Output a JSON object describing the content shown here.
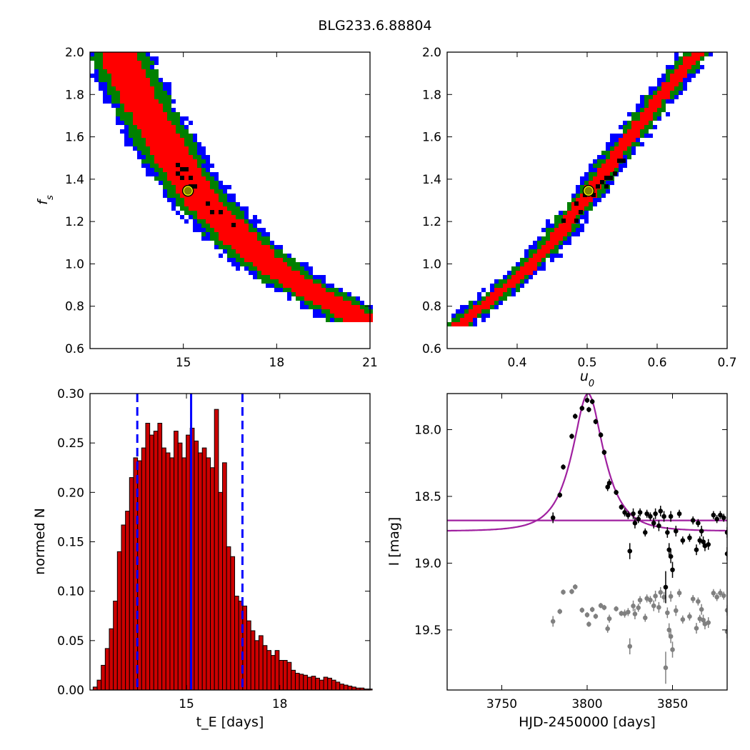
{
  "figure_title": "BLG233.6.88804",
  "chart_data": [
    {
      "type": "heatmap",
      "panel": "top-left",
      "xlabel": "",
      "ylabel": "f_s",
      "xlim": [
        12,
        21
      ],
      "ylim": [
        0.6,
        2.0
      ],
      "xticks": [
        "15",
        "18",
        "21"
      ],
      "yticks": [
        "0.6",
        "0.8",
        "1.0",
        "1.2",
        "1.4",
        "1.6",
        "1.8",
        "2.0"
      ],
      "colors": {
        "inner": "#ff0000",
        "mid": "#008000",
        "outer": "#0000ff",
        "best": "#000000"
      },
      "band_center": [
        [
          12.9,
          2.0
        ],
        [
          13.5,
          1.8
        ],
        [
          14.2,
          1.62
        ],
        [
          15.0,
          1.42
        ],
        [
          15.6,
          1.3
        ],
        [
          16.4,
          1.18
        ],
        [
          17.3,
          1.05
        ],
        [
          18.2,
          0.95
        ],
        [
          19.2,
          0.86
        ],
        [
          20.2,
          0.78
        ],
        [
          20.7,
          0.73
        ]
      ],
      "best_fit": {
        "x": 15.15,
        "y": 1.345
      }
    },
    {
      "type": "heatmap",
      "panel": "top-right",
      "xlabel": "u_0",
      "ylabel": "",
      "xlim": [
        0.3,
        0.7
      ],
      "ylim": [
        0.6,
        2.0
      ],
      "xticks": [
        "0.4",
        "0.5",
        "0.6",
        "0.7"
      ],
      "yticks": [
        "0.6",
        "0.8",
        "1.0",
        "1.2",
        "1.4",
        "1.6",
        "1.8",
        "2.0"
      ],
      "colors": {
        "inner": "#ff0000",
        "mid": "#008000",
        "outer": "#0000ff",
        "best": "#000000"
      },
      "band_center": [
        [
          0.315,
          0.71
        ],
        [
          0.35,
          0.8
        ],
        [
          0.4,
          0.93
        ],
        [
          0.45,
          1.1
        ],
        [
          0.5,
          1.32
        ],
        [
          0.55,
          1.55
        ],
        [
          0.6,
          1.77
        ],
        [
          0.65,
          1.97
        ],
        [
          0.66,
          2.0
        ]
      ],
      "best_fit": {
        "x": 0.502,
        "y": 1.345
      }
    },
    {
      "type": "bar",
      "panel": "bottom-left",
      "xlabel": "t_E [days]",
      "ylabel": "normed N",
      "xlim": [
        11.9,
        20.9
      ],
      "ylim": [
        0,
        0.3
      ],
      "xticks": [
        "15",
        "18"
      ],
      "yticks": [
        "0.00",
        "0.05",
        "0.10",
        "0.15",
        "0.20",
        "0.25",
        "0.30"
      ],
      "bin_start": 12.0,
      "bin_width": 0.13,
      "values": [
        0.003,
        0.01,
        0.025,
        0.042,
        0.062,
        0.09,
        0.14,
        0.167,
        0.181,
        0.215,
        0.235,
        0.232,
        0.245,
        0.27,
        0.258,
        0.262,
        0.27,
        0.245,
        0.24,
        0.235,
        0.262,
        0.25,
        0.235,
        0.258,
        0.265,
        0.252,
        0.24,
        0.245,
        0.235,
        0.225,
        0.284,
        0.2,
        0.23,
        0.145,
        0.135,
        0.095,
        0.09,
        0.085,
        0.07,
        0.06,
        0.05,
        0.055,
        0.045,
        0.04,
        0.035,
        0.04,
        0.03,
        0.03,
        0.028,
        0.02,
        0.017,
        0.016,
        0.015,
        0.013,
        0.014,
        0.012,
        0.01,
        0.013,
        0.012,
        0.01,
        0.008,
        0.006,
        0.005,
        0.004,
        0.003,
        0.002,
        0.002,
        0.001,
        0.001
      ],
      "bar_color": "#cc0000",
      "median": 15.15,
      "lower": 13.42,
      "upper": 16.8,
      "line_color": "#0000ff"
    },
    {
      "type": "scatter",
      "panel": "bottom-right",
      "xlabel": "HJD-2450000 [days]",
      "ylabel": "I [mag]",
      "xlim": [
        3718,
        3882
      ],
      "ylim": [
        19.95,
        17.73
      ],
      "xticks": [
        "3750",
        "3800",
        "3850"
      ],
      "yticks": [
        "18.0",
        "18.5",
        "19.0",
        "19.5"
      ],
      "model_color": "#a020a0",
      "model": {
        "t0": 3800.5,
        "tE": 15.15,
        "u0": 0.502,
        "fs": 1.345,
        "baseline": 18.76
      },
      "residual_offset": 18.68,
      "data_color": "#000000",
      "residual_color": "#808080",
      "points": [
        [
          3780,
          18.66,
          0.04
        ],
        [
          3784,
          18.49,
          0.02
        ],
        [
          3786,
          18.28,
          0.02
        ],
        [
          3791,
          18.05,
          0.02
        ],
        [
          3793,
          17.9,
          0.02
        ],
        [
          3797,
          17.84,
          0.02
        ],
        [
          3800,
          17.78,
          0.02
        ],
        [
          3801,
          17.85,
          0.02
        ],
        [
          3803,
          17.79,
          0.02
        ],
        [
          3805,
          17.94,
          0.02
        ],
        [
          3808,
          18.04,
          0.02
        ],
        [
          3810,
          18.17,
          0.02
        ],
        [
          3812,
          18.43,
          0.03
        ],
        [
          3813,
          18.4,
          0.03
        ],
        [
          3817,
          18.47,
          0.02
        ],
        [
          3820,
          18.58,
          0.02
        ],
        [
          3822,
          18.62,
          0.03
        ],
        [
          3824,
          18.64,
          0.03
        ],
        [
          3825,
          18.91,
          0.06
        ],
        [
          3827,
          18.63,
          0.04
        ],
        [
          3828,
          18.7,
          0.04
        ],
        [
          3830,
          18.67,
          0.03
        ],
        [
          3831,
          18.62,
          0.03
        ],
        [
          3834,
          18.77,
          0.03
        ],
        [
          3835,
          18.63,
          0.03
        ],
        [
          3837,
          18.65,
          0.03
        ],
        [
          3839,
          18.7,
          0.04
        ],
        [
          3840,
          18.63,
          0.04
        ],
        [
          3842,
          18.72,
          0.04
        ],
        [
          3843,
          18.61,
          0.04
        ],
        [
          3845,
          18.65,
          0.04
        ],
        [
          3846,
          19.18,
          0.12
        ],
        [
          3847,
          18.77,
          0.04
        ],
        [
          3848,
          18.9,
          0.05
        ],
        [
          3849,
          18.65,
          0.04
        ],
        [
          3849,
          18.95,
          0.05
        ],
        [
          3850,
          19.05,
          0.06
        ],
        [
          3852,
          18.76,
          0.04
        ],
        [
          3854,
          18.63,
          0.03
        ],
        [
          3856,
          18.83,
          0.03
        ],
        [
          3860,
          18.81,
          0.03
        ],
        [
          3862,
          18.68,
          0.03
        ],
        [
          3864,
          18.9,
          0.04
        ],
        [
          3865,
          18.7,
          0.03
        ],
        [
          3866,
          18.83,
          0.03
        ],
        [
          3867,
          18.76,
          0.04
        ],
        [
          3868,
          18.84,
          0.04
        ],
        [
          3869,
          18.87,
          0.04
        ],
        [
          3871,
          18.86,
          0.04
        ],
        [
          3874,
          18.64,
          0.03
        ],
        [
          3876,
          18.67,
          0.03
        ],
        [
          3878,
          18.64,
          0.03
        ],
        [
          3880,
          18.66,
          0.03
        ],
        [
          3882,
          18.77,
          0.04
        ],
        [
          3882,
          18.93,
          0.05
        ]
      ]
    }
  ]
}
